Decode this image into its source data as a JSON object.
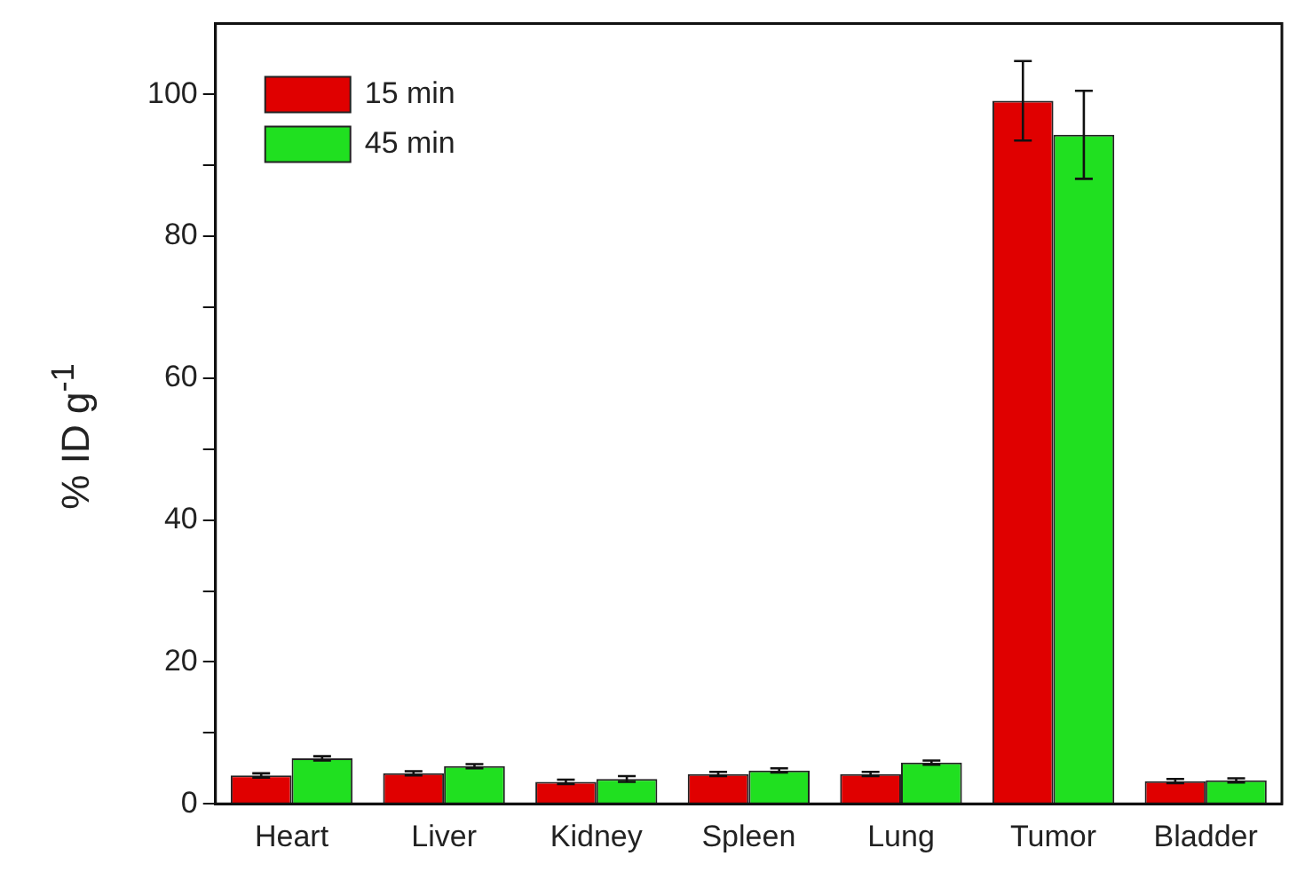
{
  "chart_data": {
    "type": "bar",
    "ylabel": "% ID g$^{-1}$",
    "categories": [
      "Heart",
      "Liver",
      "Kidney",
      "Spleen",
      "Lung",
      "Tumor",
      "Bladder"
    ],
    "series": [
      {
        "name": "15 min",
        "color": "#e00000",
        "values": [
          4.0,
          4.3,
          3.1,
          4.2,
          4.2,
          99.1,
          3.2
        ],
        "errors": [
          0.3,
          0.3,
          0.3,
          0.3,
          0.3,
          5.6,
          0.3
        ]
      },
      {
        "name": "45 min",
        "color": "#20e020",
        "values": [
          6.4,
          5.3,
          3.5,
          4.7,
          5.8,
          94.3,
          3.3
        ],
        "errors": [
          0.3,
          0.3,
          0.4,
          0.3,
          0.3,
          6.2,
          0.3
        ]
      }
    ],
    "ylim": [
      0,
      110
    ],
    "yticks": [
      0,
      {
        "value": 10,
        "label": null
      },
      20,
      {
        "value": 30,
        "label": null
      },
      40,
      {
        "value": 50,
        "label": null
      },
      60,
      {
        "value": 70,
        "label": null
      },
      80,
      {
        "value": 90,
        "label": null
      },
      100
    ],
    "grid": false,
    "legend": "top left"
  }
}
